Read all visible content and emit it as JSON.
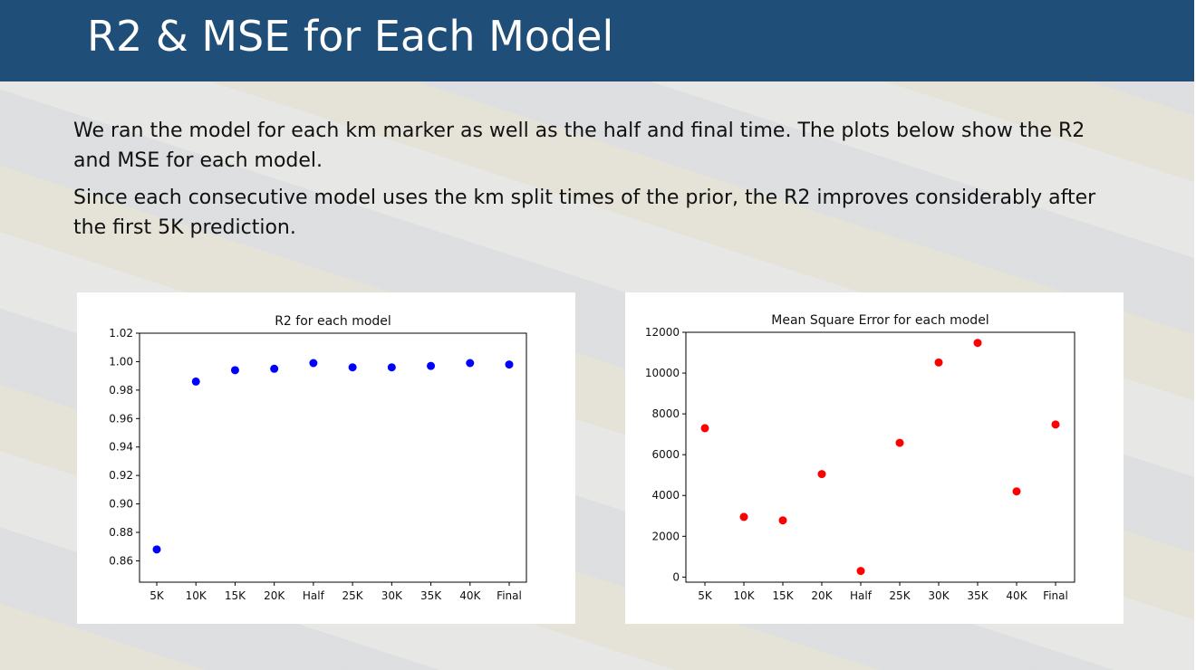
{
  "slide": {
    "title": "R2 & MSE for Each Model",
    "paragraph_1": "We ran the model for each km marker as well as the half and final time. The plots below show the R2 and MSE for each model.",
    "paragraph_2": "Since each consecutive model uses the km split times of the prior, the R2 improves considerably after the first 5K prediction."
  },
  "colors": {
    "header": "#1f4e79",
    "r2_points": "#0000ff",
    "mse_points": "#ff0000"
  },
  "chart_data": [
    {
      "id": "r2",
      "type": "scatter",
      "title": "R2 for each model",
      "xlabel": "",
      "ylabel": "",
      "categories": [
        "5K",
        "10K",
        "15K",
        "20K",
        "Half",
        "25K",
        "30K",
        "35K",
        "40K",
        "Final"
      ],
      "values": [
        0.868,
        0.986,
        0.994,
        0.995,
        0.999,
        0.996,
        0.996,
        0.997,
        0.999,
        0.998
      ],
      "ylim": [
        0.845,
        1.02
      ],
      "yticks": [
        1.02,
        1.0,
        0.98,
        0.96,
        0.94,
        0.92,
        0.9,
        0.88,
        0.86
      ],
      "ytick_labels": [
        "1.02",
        "1.00",
        "0.98",
        "0.96",
        "0.94",
        "0.92",
        "0.90",
        "0.88",
        "0.86"
      ],
      "grid": false,
      "color": "#0000ff"
    },
    {
      "id": "mse",
      "type": "scatter",
      "title": "Mean Square Error for each model",
      "xlabel": "",
      "ylabel": "",
      "categories": [
        "5K",
        "10K",
        "15K",
        "20K",
        "Half",
        "25K",
        "30K",
        "35K",
        "40K",
        "Final"
      ],
      "values": [
        7300,
        2950,
        2780,
        5050,
        300,
        6580,
        10520,
        11480,
        4200,
        7480
      ],
      "ylim": [
        -250,
        12000
      ],
      "yticks": [
        12000,
        10000,
        8000,
        6000,
        4000,
        2000,
        0
      ],
      "ytick_labels": [
        "12000",
        "10000",
        "8000",
        "6000",
        "4000",
        "2000",
        "0"
      ],
      "grid": false,
      "color": "#ff0000"
    }
  ]
}
